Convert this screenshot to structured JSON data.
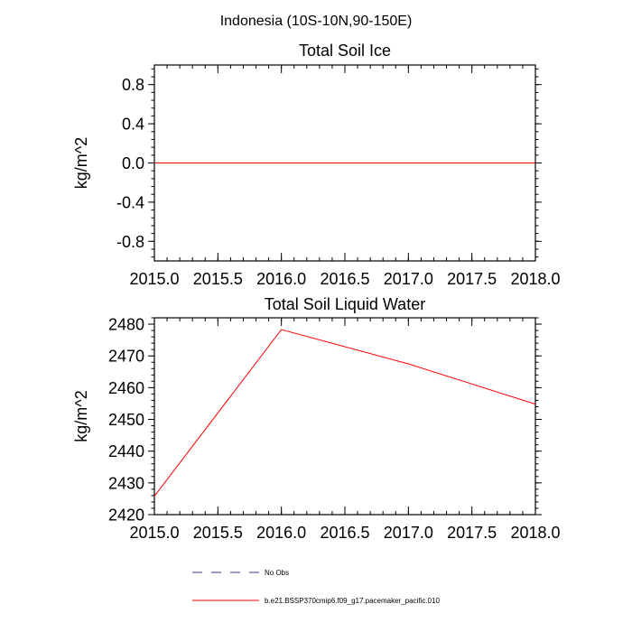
{
  "figure": {
    "suptitle": "Indonesia (10S-10N,90-150E)"
  },
  "chart_data": [
    {
      "type": "line",
      "title": "Total Soil Ice",
      "xlabel": "",
      "ylabel": "kg/m^2",
      "xlim": [
        2015.0,
        2018.0
      ],
      "ylim": [
        -1.0,
        1.0
      ],
      "xticks": [
        2015.0,
        2015.5,
        2016.0,
        2016.5,
        2017.0,
        2017.5,
        2018.0
      ],
      "xtick_labels": [
        "2015.0",
        "2015.5",
        "2016.0",
        "2016.5",
        "2017.0",
        "2017.5",
        "2018.0"
      ],
      "yticks": [
        0.8,
        0.4,
        0.0,
        -0.4,
        -0.8
      ],
      "ytick_labels": [
        "0.8",
        "0.4",
        "0.0",
        "-0.4",
        "-0.8"
      ],
      "grid": false,
      "series": [
        {
          "name": "b.e21.BSSP370cmip6.f09_g17.pacemaker_pacific.010",
          "color": "#ff0000",
          "x": [
            2015.0,
            2016.0,
            2017.0,
            2018.0
          ],
          "y": [
            0.0,
            0.0,
            0.0,
            0.0
          ]
        }
      ]
    },
    {
      "type": "line",
      "title": "Total Soil Liquid Water",
      "xlabel": "",
      "ylabel": "kg/m^2",
      "xlim": [
        2015.0,
        2018.0
      ],
      "ylim": [
        2420,
        2482
      ],
      "xticks": [
        2015.0,
        2015.5,
        2016.0,
        2016.5,
        2017.0,
        2017.5,
        2018.0
      ],
      "xtick_labels": [
        "2015.0",
        "2015.5",
        "2016.0",
        "2016.5",
        "2017.0",
        "2017.5",
        "2018.0"
      ],
      "yticks": [
        2480,
        2470,
        2460,
        2450,
        2440,
        2430,
        2420
      ],
      "ytick_labels": [
        "2480",
        "2470",
        "2460",
        "2450",
        "2440",
        "2430",
        "2420"
      ],
      "grid": false,
      "series": [
        {
          "name": "b.e21.BSSP370cmip6.f09_g17.pacemaker_pacific.010",
          "color": "#ff0000",
          "x": [
            2015.0,
            2016.0,
            2017.0,
            2018.0
          ],
          "y": [
            2425.8,
            2478.3,
            2467.5,
            2454.8
          ]
        }
      ]
    }
  ],
  "legend": {
    "placement": "bottom",
    "entries": [
      {
        "label": "No Obs",
        "color": "#3a3a9a",
        "style": "dashed"
      },
      {
        "label": "b.e21.BSSP370cmip6.f09_g17.pacemaker_pacific.010",
        "color": "#ff0000",
        "style": "solid"
      }
    ]
  }
}
